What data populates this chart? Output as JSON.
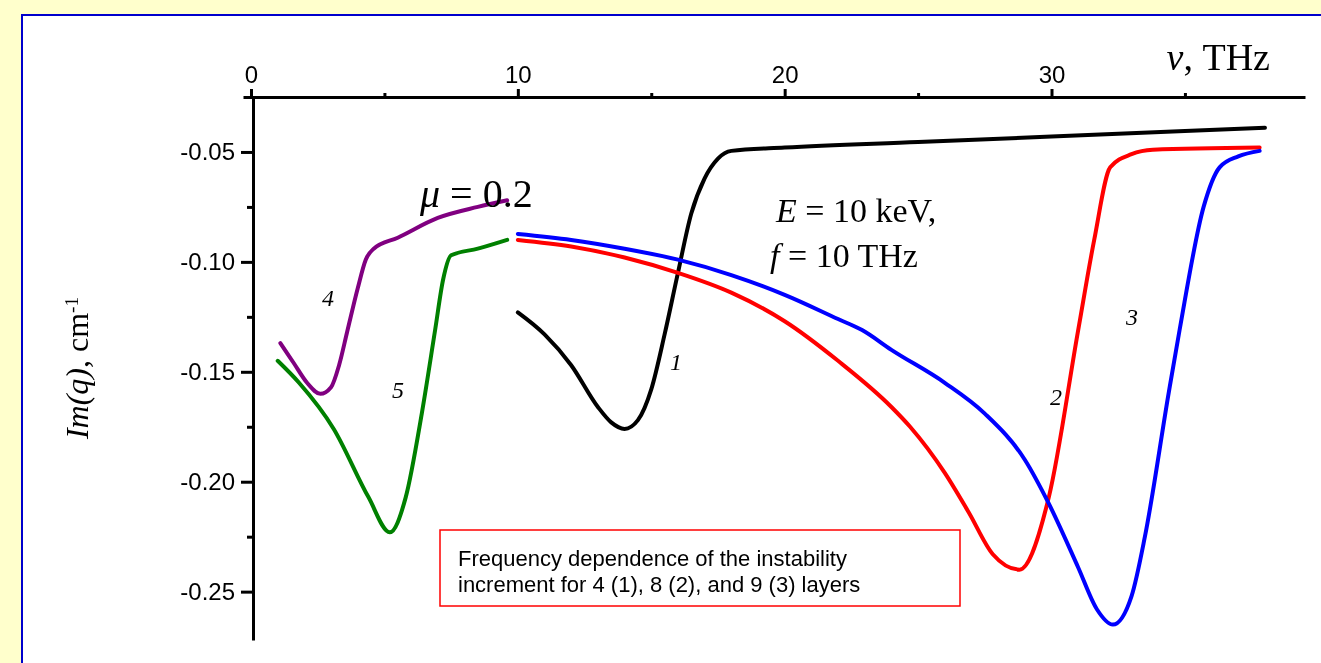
{
  "chart_data": {
    "type": "line",
    "xlabel": "ν, THz",
    "ylabel": "Im(q), cm$^{-1}$",
    "xlim": [
      -0.3,
      39.5
    ],
    "ylim": [
      -0.272,
      -0.025
    ],
    "xticks": [
      0,
      {
        "value": 5,
        "label": null
      },
      10,
      {
        "value": 15,
        "label": null
      },
      20,
      {
        "value": 25,
        "label": null
      },
      30,
      {
        "value": 35,
        "label": null
      }
    ],
    "yticks": [
      -0.05,
      {
        "value": -0.075,
        "label": null
      },
      {
        "value": -0.1,
        "label": "-0.10"
      },
      {
        "value": -0.125,
        "label": null
      },
      -0.15,
      {
        "value": -0.175,
        "label": null
      },
      {
        "value": -0.2,
        "label": "-0.20"
      },
      {
        "value": -0.225,
        "label": null
      },
      -0.25
    ],
    "grid": false,
    "legend": false,
    "marker": "none",
    "line_style": "solid",
    "series": [
      {
        "name": "1",
        "color": "#000000",
        "x": [
          10,
          11,
          12,
          13,
          13.5,
          14,
          14.5,
          15,
          15.5,
          16,
          16.5,
          17,
          17.5,
          18,
          20,
          25,
          30,
          35,
          38
        ],
        "values": [
          -0.123,
          -0.133,
          -0.147,
          -0.166,
          -0.173,
          -0.176,
          -0.172,
          -0.158,
          -0.133,
          -0.105,
          -0.078,
          -0.062,
          -0.053,
          -0.0495,
          -0.048,
          -0.0455,
          -0.043,
          -0.0405,
          -0.039
        ]
      },
      {
        "name": "2",
        "color": "#ff0000",
        "x": [
          10,
          12,
          14,
          16,
          18,
          20,
          22,
          24,
          24.7,
          26,
          26.9,
          27.8,
          28.8,
          29.9,
          31,
          31.6,
          32.2,
          33,
          33.8,
          37.8
        ],
        "values": [
          -0.09,
          -0.093,
          -0.098,
          -0.105,
          -0.114,
          -0.127,
          -0.145,
          -0.166,
          -0.175,
          -0.196,
          -0.214,
          -0.233,
          -0.24,
          -0.207,
          -0.131,
          -0.09,
          -0.057,
          -0.051,
          -0.049,
          -0.048
        ]
      },
      {
        "name": "3",
        "color": "#0000ff",
        "x": [
          10,
          12,
          14,
          16,
          18,
          20,
          22,
          22.9,
          24,
          26,
          27.5,
          29,
          29.9,
          31,
          31.7,
          32.3,
          33,
          33.5,
          34.4,
          34.8,
          35.7,
          36.3,
          37,
          37.8
        ],
        "values": [
          -0.0873,
          -0.09,
          -0.094,
          -0.099,
          -0.106,
          -0.115,
          -0.126,
          -0.131,
          -0.14,
          -0.155,
          -0.169,
          -0.19,
          -0.21,
          -0.239,
          -0.258,
          -0.265,
          -0.252,
          -0.225,
          -0.159,
          -0.131,
          -0.075,
          -0.057,
          -0.052,
          -0.0495
        ]
      },
      {
        "name": "4",
        "color": "#800080",
        "x": [
          1.1,
          1.6,
          2.1,
          2.6,
          3.0,
          3.3,
          3.6,
          4.0,
          4.3,
          4.6,
          5.5,
          7,
          8.5,
          9.6
        ],
        "values": [
          -0.137,
          -0.146,
          -0.155,
          -0.16,
          -0.157,
          -0.147,
          -0.132,
          -0.112,
          -0.099,
          -0.094,
          -0.089,
          -0.08,
          -0.075,
          -0.072
        ]
      },
      {
        "name": "5",
        "color": "#008000",
        "x": [
          1.0,
          1.8,
          3.1,
          4.4,
          5.2,
          5.8,
          6.4,
          6.9,
          7.2,
          7.5,
          8.5,
          9.6
        ],
        "values": [
          -0.145,
          -0.155,
          -0.176,
          -0.207,
          -0.223,
          -0.207,
          -0.169,
          -0.131,
          -0.108,
          -0.097,
          -0.094,
          -0.09
        ]
      }
    ],
    "annotations": [
      "μ = 0.2",
      "E = 10 keV,",
      "f = 10 THz",
      "Frequency dependence of the instability increment for 4 (1), 8 (2), and 9 (3) layers"
    ]
  }
}
